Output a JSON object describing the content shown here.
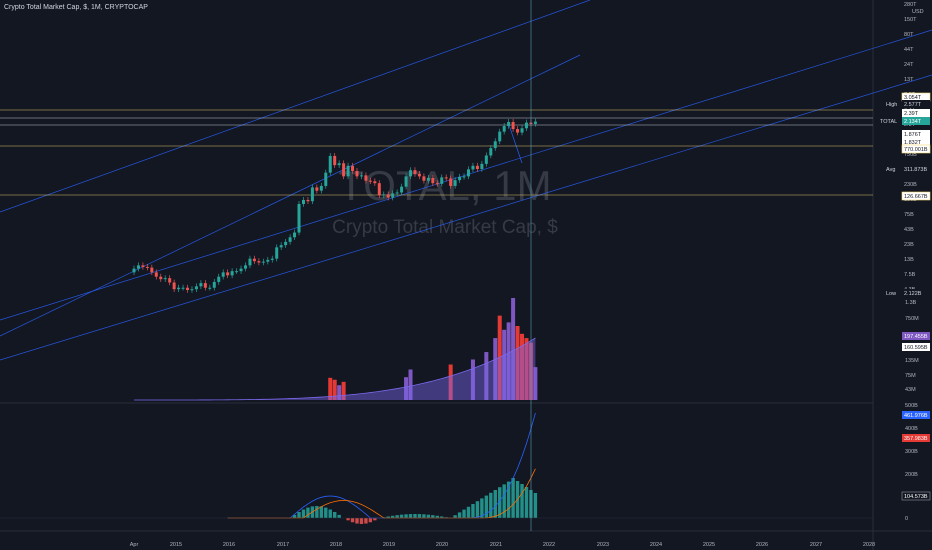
{
  "header": {
    "title": "Crypto Total Market Cap, $, 1M, CRYPTOCAP",
    "currency": "USD"
  },
  "watermark": {
    "symbol": "TOTAL, 1M",
    "name": "Crypto Total Market Cap, $"
  },
  "colors": {
    "background": "#131722",
    "up_candle": "#26a69a",
    "down_candle": "#ef5350",
    "trend_line": "#2962ff",
    "horizontal_level": "#f5d76e",
    "volume_up": "#7e57c2",
    "volume_down": "#e53935",
    "volume_ma": "#7b68ee",
    "macd_line": "#2962ff",
    "signal_line": "#ff6d00",
    "hist_up": "#26a69a",
    "hist_down": "#ef5350"
  },
  "price_axis_labels": [
    "280T",
    "150T",
    "80T",
    "44T",
    "24T",
    "13T",
    "7.5T",
    "4.3T",
    "2.3T",
    "1.25T",
    "750B",
    "430B",
    "230B",
    "130B",
    "75B",
    "43B",
    "23B",
    "13B",
    "7.5B",
    "4.3B"
  ],
  "price_axis_tags": [
    {
      "label": "",
      "value": "3.054T",
      "kind": "level"
    },
    {
      "label": "High",
      "value": "2.577T",
      "kind": "dark"
    },
    {
      "label": "",
      "value": "2.39T",
      "kind": "light"
    },
    {
      "label": "TOTAL",
      "value": "2.134T",
      "kind": "current"
    },
    {
      "label": "",
      "value": "1.876T",
      "kind": "light"
    },
    {
      "label": "",
      "value": "1.832T",
      "kind": "light"
    },
    {
      "label": "",
      "value": "770.001B",
      "kind": "level"
    },
    {
      "label": "Avg",
      "value": "311.873B",
      "kind": "dark"
    },
    {
      "label": "",
      "value": "126.667B",
      "kind": "level"
    },
    {
      "label": "Low",
      "value": "2.122B",
      "kind": "dark"
    }
  ],
  "volume_axis_labels": [
    "1.3B",
    "750M",
    "135M",
    "75M",
    "43M"
  ],
  "volume_axis_tags": [
    "197.455B",
    "160.595B"
  ],
  "macd_axis_labels": [
    "500B",
    "400B",
    "300B",
    "200B",
    "0"
  ],
  "macd_axis_tags": [
    "461.976B",
    "357.983B",
    "104.573B"
  ],
  "x_axis_labels": [
    "Apr",
    "2015",
    "2016",
    "2017",
    "2018",
    "2019",
    "2020",
    "2021",
    "2022",
    "2023",
    "2024",
    "2025",
    "2026",
    "2027",
    "2028"
  ],
  "chart_data": [
    {
      "type": "candlestick",
      "title": "Crypto Total Market Cap, $, 1M, CRYPTOCAP",
      "y_scale": "log",
      "ylim": [
        "2.122B",
        "280T"
      ],
      "x_range": [
        "2014-04",
        "2028-12"
      ],
      "candles": [
        {
          "date": "2014-04",
          "open": 6.5,
          "close": 7.5
        },
        {
          "date": "2014-05",
          "open": 7.5,
          "close": 8.5
        },
        {
          "date": "2014-06",
          "open": 8.5,
          "close": 8
        },
        {
          "date": "2014-07",
          "open": 8,
          "close": 7.8
        },
        {
          "date": "2014-08",
          "open": 7.8,
          "close": 6.5
        },
        {
          "date": "2014-09",
          "open": 6.5,
          "close": 5.5
        },
        {
          "date": "2014-10",
          "open": 5.5,
          "close": 5
        },
        {
          "date": "2014-11",
          "open": 5,
          "close": 5.2
        },
        {
          "date": "2014-12",
          "open": 5.2,
          "close": 4.4
        },
        {
          "date": "2015-01",
          "open": 4.4,
          "close": 3.4
        },
        {
          "date": "2015-02",
          "open": 3.4,
          "close": 3.6
        },
        {
          "date": "2015-03",
          "open": 3.6,
          "close": 3.6
        },
        {
          "date": "2015-04",
          "open": 3.6,
          "close": 3.3
        },
        {
          "date": "2015-05",
          "open": 3.3,
          "close": 3.4
        },
        {
          "date": "2015-06",
          "open": 3.4,
          "close": 3.8
        },
        {
          "date": "2015-07",
          "open": 3.8,
          "close": 4.3
        },
        {
          "date": "2015-08",
          "open": 4.3,
          "close": 3.6
        },
        {
          "date": "2015-09",
          "open": 3.6,
          "close": 3.6
        },
        {
          "date": "2015-10",
          "open": 3.6,
          "close": 4.5
        },
        {
          "date": "2015-11",
          "open": 4.5,
          "close": 5.5
        },
        {
          "date": "2015-12",
          "open": 5.5,
          "close": 6.5
        },
        {
          "date": "2016-01",
          "open": 6.5,
          "close": 5.8
        },
        {
          "date": "2016-02",
          "open": 5.8,
          "close": 6.8
        },
        {
          "date": "2016-03",
          "open": 6.8,
          "close": 6.8
        },
        {
          "date": "2016-04",
          "open": 6.8,
          "close": 7.5
        },
        {
          "date": "2016-05",
          "open": 7.5,
          "close": 8.5
        },
        {
          "date": "2016-06",
          "open": 8.5,
          "close": 11
        },
        {
          "date": "2016-07",
          "open": 11,
          "close": 10
        },
        {
          "date": "2016-08",
          "open": 10,
          "close": 9.5
        },
        {
          "date": "2016-09",
          "open": 9.5,
          "close": 9.8
        },
        {
          "date": "2016-10",
          "open": 9.8,
          "close": 10.5
        },
        {
          "date": "2016-11",
          "open": 10.5,
          "close": 11
        },
        {
          "date": "2016-12",
          "open": 11,
          "close": 17
        },
        {
          "date": "2017-01",
          "open": 17,
          "close": 18.5
        },
        {
          "date": "2017-02",
          "open": 18.5,
          "close": 21
        },
        {
          "date": "2017-03",
          "open": 21,
          "close": 25
        },
        {
          "date": "2017-04",
          "open": 25,
          "close": 30
        },
        {
          "date": "2017-05",
          "open": 30,
          "close": 90
        },
        {
          "date": "2017-06",
          "open": 90,
          "close": 105
        },
        {
          "date": "2017-07",
          "open": 105,
          "close": 100
        },
        {
          "date": "2017-08",
          "open": 100,
          "close": 170
        },
        {
          "date": "2017-09",
          "open": 170,
          "close": 150
        },
        {
          "date": "2017-10",
          "open": 150,
          "close": 180
        },
        {
          "date": "2017-11",
          "open": 180,
          "close": 300
        },
        {
          "date": "2017-12",
          "open": 300,
          "close": 570
        },
        {
          "date": "2018-01",
          "open": 570,
          "close": 400
        },
        {
          "date": "2018-02",
          "open": 400,
          "close": 430
        },
        {
          "date": "2018-03",
          "open": 430,
          "close": 260
        },
        {
          "date": "2018-04",
          "open": 260,
          "close": 390
        },
        {
          "date": "2018-05",
          "open": 390,
          "close": 320
        },
        {
          "date": "2018-06",
          "open": 320,
          "close": 260
        },
        {
          "date": "2018-07",
          "open": 260,
          "close": 270
        },
        {
          "date": "2018-08",
          "open": 270,
          "close": 220
        },
        {
          "date": "2018-09",
          "open": 220,
          "close": 215
        },
        {
          "date": "2018-10",
          "open": 215,
          "close": 200
        },
        {
          "date": "2018-11",
          "open": 200,
          "close": 125
        },
        {
          "date": "2018-12",
          "open": 125,
          "close": 130
        },
        {
          "date": "2019-01",
          "open": 130,
          "close": 115
        },
        {
          "date": "2019-02",
          "open": 115,
          "close": 135
        },
        {
          "date": "2019-03",
          "open": 135,
          "close": 140
        },
        {
          "date": "2019-04",
          "open": 140,
          "close": 175
        },
        {
          "date": "2019-05",
          "open": 175,
          "close": 260
        },
        {
          "date": "2019-06",
          "open": 260,
          "close": 330
        },
        {
          "date": "2019-07",
          "open": 330,
          "close": 285
        },
        {
          "date": "2019-08",
          "open": 285,
          "close": 260
        },
        {
          "date": "2019-09",
          "open": 260,
          "close": 220
        },
        {
          "date": "2019-10",
          "open": 220,
          "close": 245
        },
        {
          "date": "2019-11",
          "open": 245,
          "close": 200
        },
        {
          "date": "2019-12",
          "open": 200,
          "close": 195
        },
        {
          "date": "2020-01",
          "open": 195,
          "close": 250
        },
        {
          "date": "2020-02",
          "open": 250,
          "close": 240
        },
        {
          "date": "2020-03",
          "open": 240,
          "close": 180
        },
        {
          "date": "2020-04",
          "open": 180,
          "close": 225
        },
        {
          "date": "2020-05",
          "open": 225,
          "close": 255
        },
        {
          "date": "2020-06",
          "open": 255,
          "close": 260
        },
        {
          "date": "2020-07",
          "open": 260,
          "close": 340
        },
        {
          "date": "2020-08",
          "open": 340,
          "close": 390
        },
        {
          "date": "2020-09",
          "open": 390,
          "close": 345
        },
        {
          "date": "2020-10",
          "open": 345,
          "close": 420
        },
        {
          "date": "2020-11",
          "open": 420,
          "close": 580
        },
        {
          "date": "2020-12",
          "open": 580,
          "close": 770
        },
        {
          "date": "2021-01",
          "open": 770,
          "close": 1000
        },
        {
          "date": "2021-02",
          "open": 1000,
          "close": 1450
        },
        {
          "date": "2021-03",
          "open": 1450,
          "close": 1800
        },
        {
          "date": "2021-04",
          "open": 1800,
          "close": 2100
        },
        {
          "date": "2021-05",
          "open": 2100,
          "close": 1600
        },
        {
          "date": "2021-06",
          "open": 1600,
          "close": 1400
        },
        {
          "date": "2021-07",
          "open": 1400,
          "close": 1650
        },
        {
          "date": "2021-08",
          "open": 1650,
          "close": 2050
        },
        {
          "date": "2021-09",
          "open": 2050,
          "close": 1950
        },
        {
          "date": "2021-10",
          "open": 1950,
          "close": 2134
        }
      ],
      "candle_units": "billions USD",
      "volume": [
        {
          "date": "2017-12",
          "value": 90,
          "dir": "down"
        },
        {
          "date": "2018-01",
          "value": 75,
          "dir": "down"
        },
        {
          "date": "2018-02",
          "value": 40,
          "dir": "up"
        },
        {
          "date": "2018-03",
          "value": 60,
          "dir": "down"
        },
        {
          "date": "2019-05",
          "value": 95,
          "dir": "up"
        },
        {
          "date": "2019-06",
          "value": 170,
          "dir": "up"
        },
        {
          "date": "2020-03",
          "value": 230,
          "dir": "down"
        },
        {
          "date": "2020-08",
          "value": 300,
          "dir": "up"
        },
        {
          "date": "2020-11",
          "value": 420,
          "dir": "up"
        },
        {
          "date": "2021-01",
          "value": 700,
          "dir": "up"
        },
        {
          "date": "2021-02",
          "value": 1300,
          "dir": "down"
        },
        {
          "date": "2021-03",
          "value": 900,
          "dir": "up"
        },
        {
          "date": "2021-04",
          "value": 1100,
          "dir": "up"
        },
        {
          "date": "2021-05",
          "value": 1900,
          "dir": "up"
        },
        {
          "date": "2021-06",
          "value": 1000,
          "dir": "down"
        },
        {
          "date": "2021-07",
          "value": 800,
          "dir": "down"
        },
        {
          "date": "2021-08",
          "value": 700,
          "dir": "down"
        },
        {
          "date": "2021-09",
          "value": 600,
          "dir": "down"
        },
        {
          "date": "2021-10",
          "value": 197.455,
          "dir": "up"
        }
      ],
      "volume_units": "billions USD",
      "indicators": {
        "macd_line_last": "461.976B",
        "signal_line_last": "357.983B",
        "histogram_last": "104.573B"
      }
    }
  ]
}
